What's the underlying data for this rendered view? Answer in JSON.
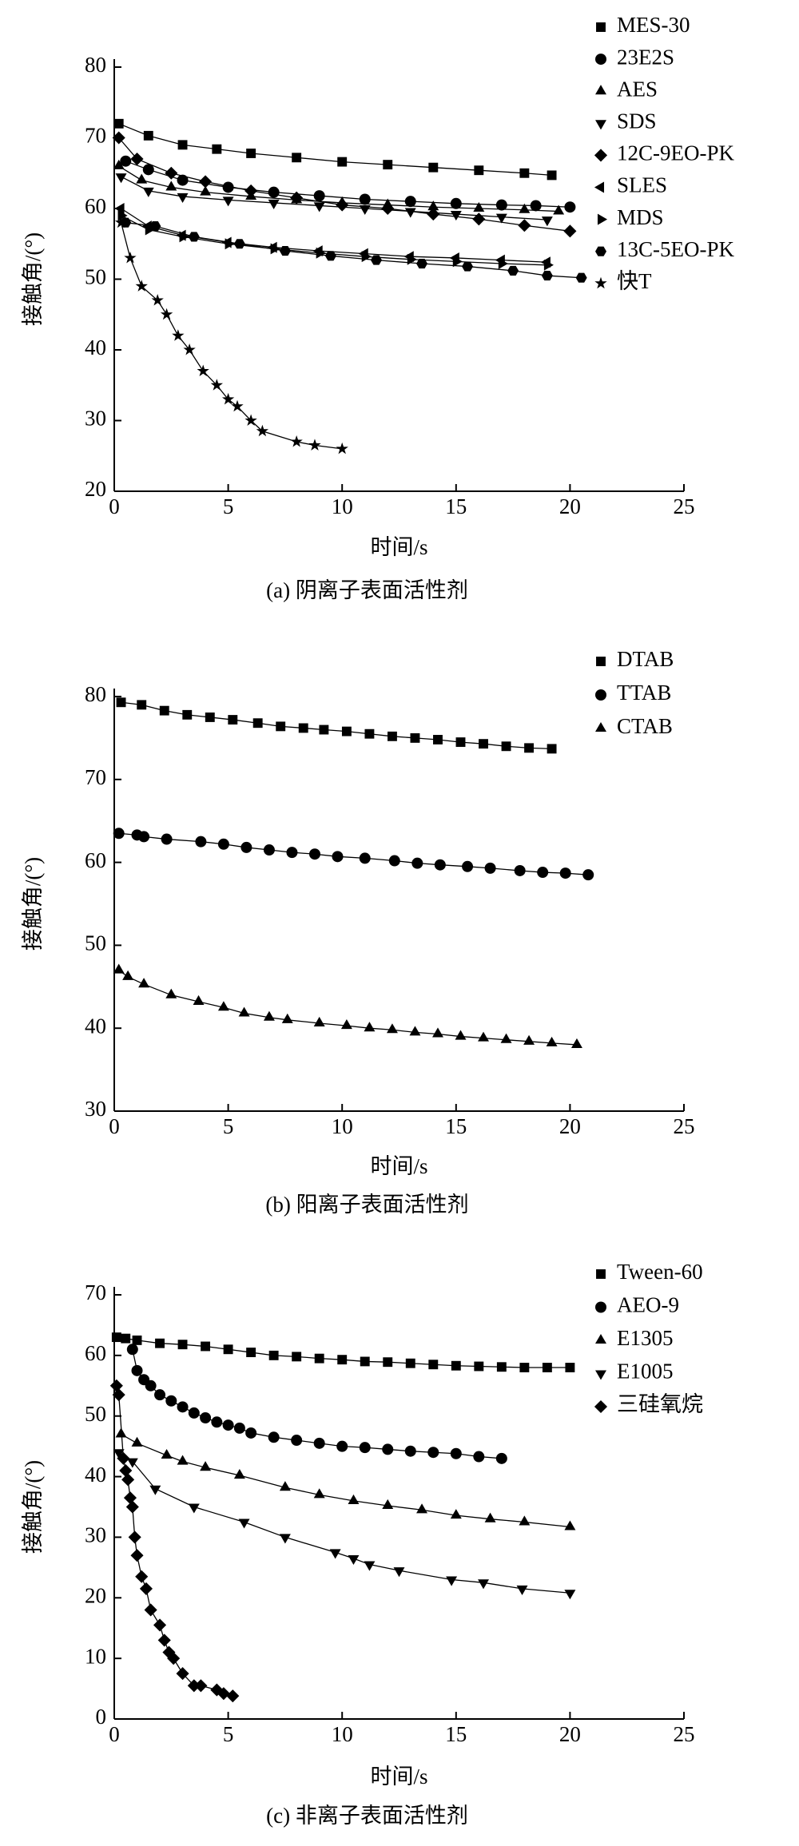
{
  "chart_data": [
    {
      "type": "line",
      "caption": "(a) 阴离子表面活性剂",
      "xlabel": "时间/s",
      "ylabel": "接触角/(°)",
      "xlim": [
        0,
        25
      ],
      "xticks": [
        0,
        5,
        10,
        15,
        20,
        25
      ],
      "ylim": [
        20,
        80
      ],
      "yticks": [
        20,
        30,
        40,
        50,
        60,
        70,
        80
      ],
      "legend": "upper right",
      "series": [
        {
          "name": "MES-30",
          "color": "#000000",
          "marker": "square",
          "x": [
            0.2,
            1.5,
            3,
            4.5,
            6,
            8,
            10,
            12,
            14,
            16,
            18,
            19.2
          ],
          "values": [
            72,
            70.3,
            69,
            68.4,
            67.8,
            67.2,
            66.6,
            66.2,
            65.8,
            65.4,
            65,
            64.7
          ]
        },
        {
          "name": "23E2S",
          "color": "#000000",
          "marker": "circle",
          "x": [
            0.5,
            1.5,
            3,
            5,
            7,
            9,
            11,
            13,
            15,
            17,
            18.5,
            20
          ],
          "values": [
            66.7,
            65.5,
            64,
            63,
            62.3,
            61.8,
            61.3,
            61,
            60.7,
            60.5,
            60.4,
            60.2
          ]
        },
        {
          "name": "AES",
          "color": "#000000",
          "marker": "triangle-up",
          "x": [
            0.2,
            1.2,
            2.5,
            4,
            6,
            8,
            10,
            12,
            14,
            16,
            18,
            19.5
          ],
          "values": [
            66,
            64,
            63,
            62.3,
            61.7,
            61.2,
            60.8,
            60.5,
            60.2,
            60,
            59.8,
            59.6
          ]
        },
        {
          "name": "SDS",
          "color": "#000000",
          "marker": "triangle-down",
          "x": [
            0.3,
            1.5,
            3,
            5,
            7,
            9,
            11,
            13,
            15,
            17,
            19
          ],
          "values": [
            64.5,
            62.5,
            61.7,
            61.2,
            60.8,
            60.4,
            60,
            59.6,
            59.2,
            58.8,
            58.4
          ]
        },
        {
          "name": "12C-9EO-PK",
          "color": "#000000",
          "marker": "diamond",
          "x": [
            0.2,
            1,
            2.5,
            4,
            6,
            8,
            10,
            12,
            14,
            16,
            18,
            20
          ],
          "values": [
            70,
            67,
            65,
            63.8,
            62.5,
            61.5,
            60.5,
            60,
            59.2,
            58.5,
            57.6,
            56.8
          ]
        },
        {
          "name": "SLES",
          "color": "#000000",
          "marker": "triangle-left",
          "x": [
            0.3,
            1.5,
            3,
            5,
            7,
            9,
            11,
            13,
            15,
            17,
            19
          ],
          "values": [
            60,
            57.5,
            56.2,
            55.2,
            54.5,
            54,
            53.6,
            53.2,
            53,
            52.7,
            52.4
          ]
        },
        {
          "name": "MDS",
          "color": "#000000",
          "marker": "triangle-right",
          "x": [
            0.3,
            1.5,
            3,
            5,
            7,
            9,
            11,
            13,
            15,
            17,
            19
          ],
          "values": [
            59,
            57,
            56,
            55,
            54.3,
            53.7,
            53.2,
            52.8,
            52.5,
            52.2,
            52
          ]
        },
        {
          "name": "13C-5EO-PK",
          "color": "#000000",
          "marker": "hexagon",
          "x": [
            0.5,
            1.8,
            3.5,
            5.5,
            7.5,
            9.5,
            11.5,
            13.5,
            15.5,
            17.5,
            19,
            20.5
          ],
          "values": [
            58,
            57.5,
            56,
            55,
            54,
            53.3,
            52.7,
            52.2,
            51.8,
            51.2,
            50.5,
            50.2
          ]
        },
        {
          "name": "快T",
          "color": "#000000",
          "marker": "star",
          "x": [
            0.3,
            0.7,
            1.2,
            1.9,
            2.3,
            2.8,
            3.3,
            3.9,
            4.5,
            5,
            5.4,
            6,
            6.5,
            8,
            8.8,
            10
          ],
          "values": [
            58,
            53,
            49,
            47,
            45,
            42,
            40,
            37,
            35,
            33,
            32,
            30,
            28.5,
            27,
            26.5,
            26
          ]
        }
      ]
    },
    {
      "type": "line",
      "caption": "(b) 阳离子表面活性剂",
      "xlabel": "时间/s",
      "ylabel": "接触角/(°)",
      "xlim": [
        0,
        25
      ],
      "xticks": [
        0,
        5,
        10,
        15,
        20,
        25
      ],
      "ylim": [
        30,
        80
      ],
      "yticks": [
        30,
        40,
        50,
        60,
        70,
        80
      ],
      "legend": "upper right",
      "series": [
        {
          "name": "DTAB",
          "color": "#000000",
          "marker": "square",
          "x": [
            0.3,
            1.2,
            2.2,
            3.2,
            4.2,
            5.2,
            6.3,
            7.3,
            8.3,
            9.2,
            10.2,
            11.2,
            12.2,
            13.2,
            14.2,
            15.2,
            16.2,
            17.2,
            18.2,
            19.2
          ],
          "values": [
            79.3,
            79,
            78.3,
            77.8,
            77.5,
            77.2,
            76.8,
            76.4,
            76.2,
            76,
            75.8,
            75.5,
            75.2,
            75,
            74.8,
            74.5,
            74.3,
            74,
            73.8,
            73.7
          ]
        },
        {
          "name": "TTAB",
          "color": "#000000",
          "marker": "circle",
          "x": [
            0.2,
            1,
            1.3,
            2.3,
            3.8,
            4.8,
            5.8,
            6.8,
            7.8,
            8.8,
            9.8,
            11,
            12.3,
            13.3,
            14.3,
            15.5,
            16.5,
            17.8,
            18.8,
            19.8,
            20.8
          ],
          "values": [
            63.5,
            63.3,
            63.1,
            62.8,
            62.5,
            62.2,
            61.8,
            61.5,
            61.2,
            61,
            60.7,
            60.5,
            60.2,
            59.9,
            59.7,
            59.5,
            59.3,
            59,
            58.8,
            58.7,
            58.5
          ]
        },
        {
          "name": "CTAB",
          "color": "#000000",
          "marker": "triangle-up",
          "x": [
            0.2,
            0.6,
            1.3,
            2.5,
            3.7,
            4.8,
            5.7,
            6.8,
            7.6,
            9,
            10.2,
            11.2,
            12.2,
            13.2,
            14.2,
            15.2,
            16.2,
            17.2,
            18.2,
            19.2,
            20.3
          ],
          "values": [
            47,
            46.2,
            45.3,
            44,
            43.2,
            42.5,
            41.8,
            41.3,
            41,
            40.6,
            40.3,
            40,
            39.8,
            39.5,
            39.3,
            39,
            38.8,
            38.6,
            38.4,
            38.2,
            38
          ]
        }
      ]
    },
    {
      "type": "line",
      "caption": "(c) 非离子表面活性剂",
      "xlabel": "时间/s",
      "ylabel": "接触角/(°)",
      "xlim": [
        0,
        25
      ],
      "xticks": [
        0,
        5,
        10,
        15,
        20,
        25
      ],
      "ylim": [
        0,
        70
      ],
      "yticks": [
        0,
        10,
        20,
        30,
        40,
        50,
        60,
        70
      ],
      "legend": "upper right",
      "series": [
        {
          "name": "Tween-60",
          "color": "#000000",
          "marker": "square",
          "x": [
            0.1,
            0.5,
            1,
            2,
            3,
            4,
            5,
            6,
            7,
            8,
            9,
            10,
            11,
            12,
            13,
            14,
            15,
            16,
            17,
            18,
            19,
            20
          ],
          "values": [
            63,
            62.8,
            62.5,
            62,
            61.8,
            61.5,
            61,
            60.5,
            60,
            59.8,
            59.5,
            59.3,
            59,
            58.9,
            58.7,
            58.5,
            58.3,
            58.2,
            58.1,
            58,
            58,
            58
          ]
        },
        {
          "name": "AEO-9",
          "color": "#000000",
          "marker": "circle",
          "x": [
            0.8,
            1,
            1.3,
            1.6,
            2,
            2.5,
            3,
            3.5,
            4,
            4.5,
            5,
            5.5,
            6,
            7,
            8,
            9,
            10,
            11,
            12,
            13,
            14,
            15,
            16,
            17
          ],
          "values": [
            61,
            57.5,
            56,
            55,
            53.5,
            52.5,
            51.5,
            50.5,
            49.7,
            49,
            48.5,
            48,
            47.2,
            46.5,
            46,
            45.5,
            45,
            44.8,
            44.5,
            44.2,
            44,
            43.8,
            43.3,
            43
          ]
        },
        {
          "name": "E1305",
          "color": "#000000",
          "marker": "triangle-up",
          "x": [
            0.3,
            1,
            2.3,
            3,
            4,
            5.5,
            7.5,
            9,
            10.5,
            12,
            13.5,
            15,
            16.5,
            18,
            20
          ],
          "values": [
            47,
            45.5,
            43.5,
            42.5,
            41.5,
            40.2,
            38.2,
            37,
            36,
            35.2,
            34.5,
            33.6,
            33,
            32.5,
            31.7
          ]
        },
        {
          "name": "E1005",
          "color": "#000000",
          "marker": "triangle-down",
          "x": [
            0.2,
            0.8,
            1.8,
            3.5,
            5.7,
            7.5,
            9.7,
            10.5,
            11.2,
            12.5,
            14.8,
            16.2,
            17.9,
            20
          ],
          "values": [
            44,
            42.5,
            38,
            35,
            32.5,
            30,
            27.5,
            26.5,
            25.5,
            24.5,
            23,
            22.5,
            21.5,
            20.8
          ]
        },
        {
          "name": "三硅氧烷",
          "color": "#000000",
          "marker": "diamond",
          "x": [
            0.1,
            0.2,
            0.4,
            0.5,
            0.6,
            0.7,
            0.8,
            0.9,
            1,
            1.2,
            1.4,
            1.6,
            2,
            2.2,
            2.4,
            2.6,
            3,
            3.5,
            3.8,
            4.5,
            4.8,
            5.2
          ],
          "values": [
            55,
            53.5,
            43,
            41,
            39.5,
            36.5,
            35,
            30,
            27,
            23.5,
            21.5,
            18,
            15.5,
            13,
            11,
            10,
            7.5,
            5.5,
            5.5,
            4.8,
            4.2,
            3.8
          ]
        }
      ]
    }
  ]
}
